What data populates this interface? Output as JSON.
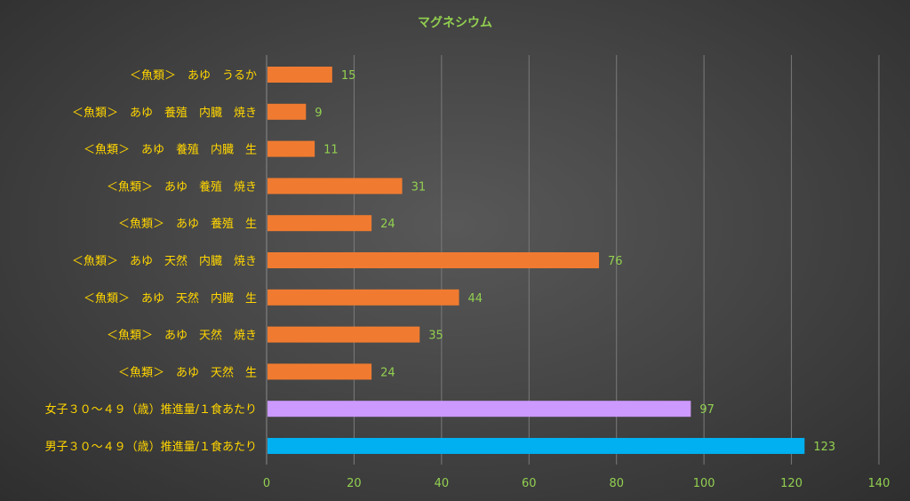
{
  "chart_data": {
    "type": "bar",
    "orientation": "horizontal",
    "title": "マグネシウム",
    "categories": [
      "＜魚類＞　あゆ　うるか",
      "＜魚類＞　あゆ　養殖　内臓　焼き",
      "＜魚類＞　あゆ　養殖　内臓　生",
      "＜魚類＞　あゆ　養殖　焼き",
      "＜魚類＞　あゆ　養殖　生",
      "＜魚類＞　あゆ　天然　内臓　焼き",
      "＜魚類＞　あゆ　天然　内臓　生",
      "＜魚類＞　あゆ　天然　焼き",
      "＜魚類＞　あゆ　天然　生",
      "女子３０～４９（歳）推進量/１食あたり",
      "男子３０～４９（歳）推進量/１食あたり"
    ],
    "values": [
      15,
      9,
      11,
      31,
      24,
      76,
      44,
      35,
      24,
      97,
      123
    ],
    "bar_colors": [
      "#f07b30",
      "#f07b30",
      "#f07b30",
      "#f07b30",
      "#f07b30",
      "#f07b30",
      "#f07b30",
      "#f07b30",
      "#f07b30",
      "#cc99ff",
      "#00b0f0"
    ],
    "xlim": [
      0,
      140
    ],
    "ticks": [
      "0",
      "20",
      "40",
      "60",
      "80",
      "100",
      "120",
      "140"
    ],
    "tick_values": [
      0,
      20,
      40,
      60,
      80,
      100,
      120,
      140
    ],
    "grid": true,
    "legend": false,
    "colors": {
      "title": "#92d050",
      "category_labels": "#ffd500",
      "value_labels": "#92d050",
      "tick_labels": "#92d050"
    }
  }
}
